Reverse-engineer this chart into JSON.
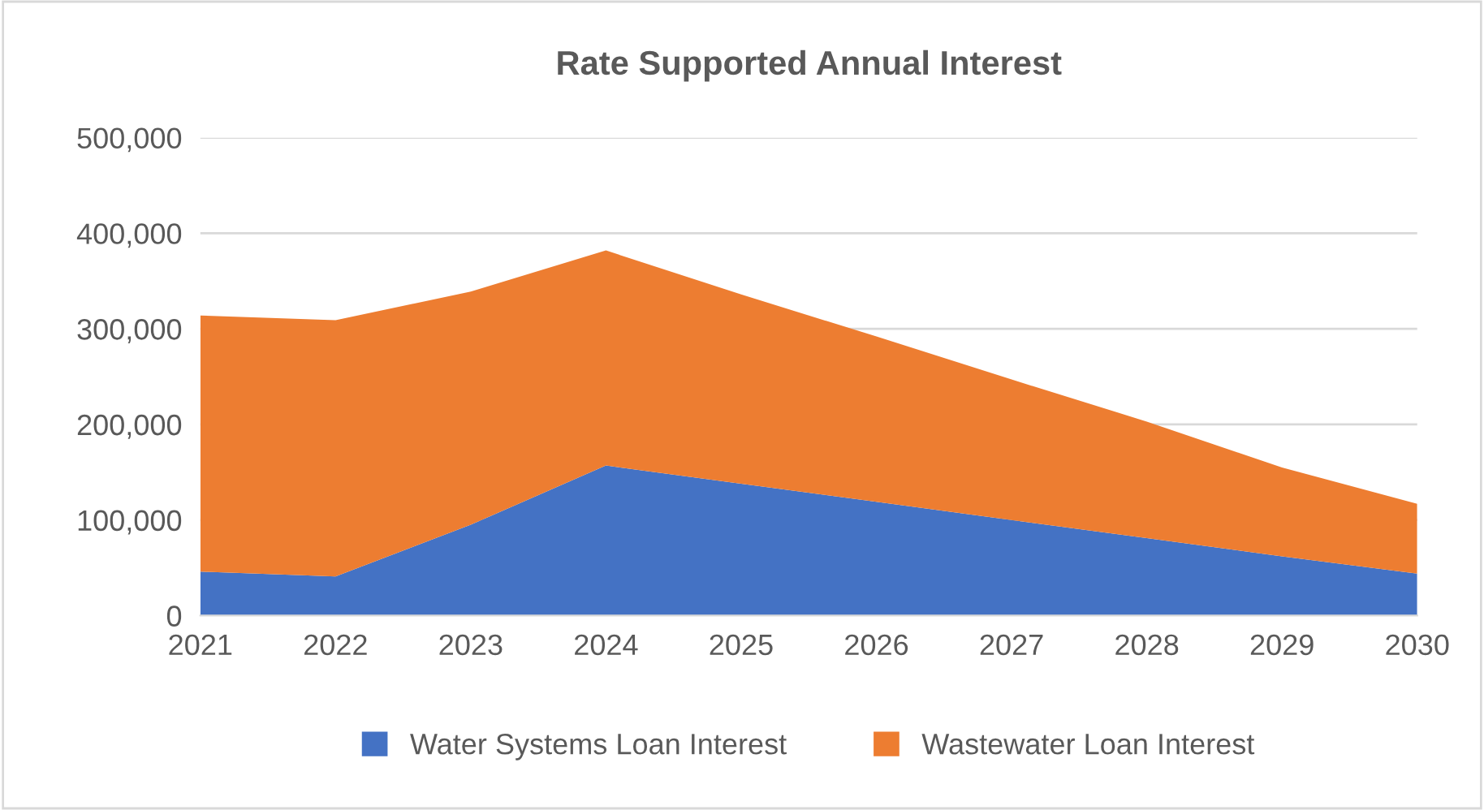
{
  "chart_data": {
    "type": "area",
    "stacked": true,
    "title": "Rate Supported Annual Interest",
    "categories": [
      "2021",
      "2022",
      "2023",
      "2024",
      "2025",
      "2026",
      "2027",
      "2028",
      "2029",
      "2030"
    ],
    "series": [
      {
        "name": "Water Systems Loan Interest",
        "color": "#4472c4",
        "values": [
          46000,
          41000,
          95000,
          157000,
          138000,
          119000,
          100000,
          81000,
          62000,
          44000
        ]
      },
      {
        "name": "Wastewater Loan Interest",
        "color": "#ed7d31",
        "values": [
          268000,
          268000,
          244000,
          225000,
          198000,
          173000,
          147000,
          122000,
          93000,
          73000
        ]
      }
    ],
    "ylim": [
      0,
      500000
    ],
    "yticks": [
      {
        "value": 0,
        "label": "0"
      },
      {
        "value": 100000,
        "label": "100,000"
      },
      {
        "value": 200000,
        "label": "200,000"
      },
      {
        "value": 300000,
        "label": "300,000"
      },
      {
        "value": 400000,
        "label": "400,000"
      },
      {
        "value": 500000,
        "label": "500,000"
      }
    ],
    "grid": "y",
    "legend": "bottom"
  }
}
